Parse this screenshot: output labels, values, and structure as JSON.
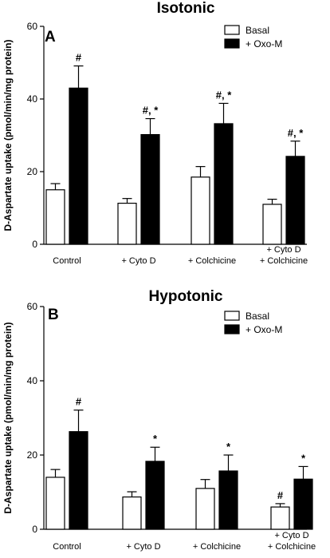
{
  "chart_data": [
    {
      "type": "bar",
      "panel": "A",
      "title": "Isotonic",
      "ylabel": "D-Aspartate uptake (pmol/min/mg protein)",
      "ylim": [
        0,
        60
      ],
      "yticks": [
        0,
        20,
        40,
        60
      ],
      "categories": [
        [
          "Control"
        ],
        [
          "+ Cyto D"
        ],
        [
          "+ Colchicine"
        ],
        [
          "+ Cyto D",
          "+ Colchicine"
        ]
      ],
      "series": [
        {
          "name": "Basal",
          "color": "#ffffff",
          "values": [
            15,
            11.3,
            18.5,
            11
          ],
          "errors": [
            1.7,
            1.3,
            2.9,
            1.4
          ]
        },
        {
          "name": "+ Oxo-M",
          "color": "#000000",
          "values": [
            43,
            30.2,
            33.2,
            24.2
          ],
          "errors": [
            6.1,
            4.4,
            5.6,
            4.2
          ]
        }
      ],
      "annotations": [
        {
          "category": 0,
          "series": 1,
          "text": "#"
        },
        {
          "category": 1,
          "series": 1,
          "text": "#, *"
        },
        {
          "category": 2,
          "series": 1,
          "text": "#, *"
        },
        {
          "category": 3,
          "series": 1,
          "text": "#, *"
        }
      ],
      "legend": "top-right",
      "grid": false
    },
    {
      "type": "bar",
      "panel": "B",
      "title": "Hypotonic",
      "ylabel": "D-Aspartate uptake (pmol/min/mg protein)",
      "ylim": [
        0,
        60
      ],
      "yticks": [
        0,
        20,
        40,
        60
      ],
      "categories": [
        [
          "Control"
        ],
        [
          "+ Cyto D"
        ],
        [
          "+ Colchicine"
        ],
        [
          "+ Cyto D",
          "+ Colchicine"
        ]
      ],
      "series": [
        {
          "name": "Basal",
          "color": "#ffffff",
          "values": [
            14,
            8.7,
            11,
            6
          ],
          "errors": [
            2.1,
            1.4,
            2.4,
            0.9
          ]
        },
        {
          "name": "+ Oxo-M",
          "color": "#000000",
          "values": [
            26.3,
            18.3,
            15.7,
            13.5
          ],
          "errors": [
            5.8,
            3.8,
            4.3,
            3.4
          ]
        }
      ],
      "annotations": [
        {
          "category": 0,
          "series": 1,
          "text": "#"
        },
        {
          "category": 1,
          "series": 1,
          "text": "*"
        },
        {
          "category": 2,
          "series": 1,
          "text": "*"
        },
        {
          "category": 3,
          "series": 0,
          "text": "#"
        },
        {
          "category": 3,
          "series": 1,
          "text": "*"
        }
      ],
      "legend": "top-right",
      "grid": false
    }
  ]
}
